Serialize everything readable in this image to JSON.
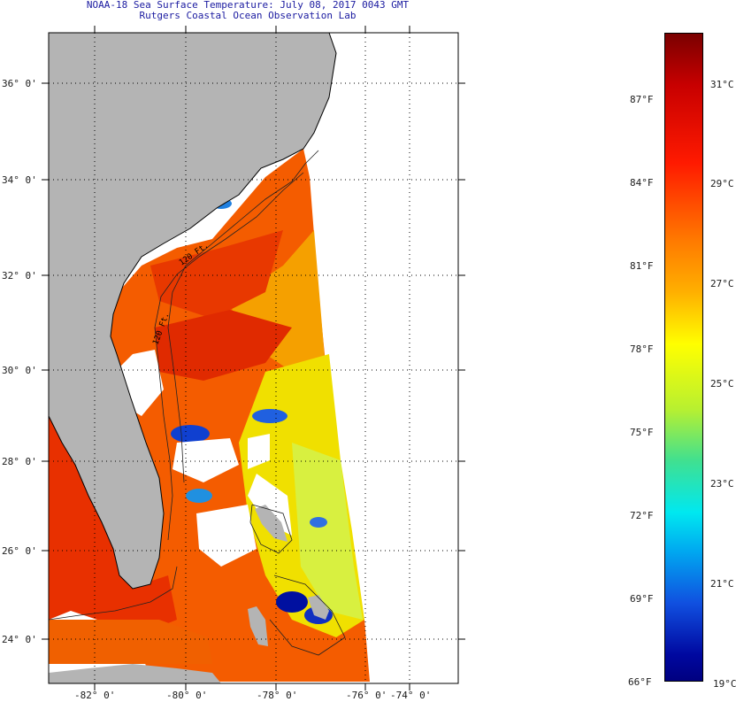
{
  "header": {
    "title_line1": "NOAA-18 Sea Surface Temperature:  July 08, 2017 0043 GMT",
    "title_line2": "Rutgers Coastal Ocean Observation Lab"
  },
  "map": {
    "lat_labels": [
      "36° 0'",
      "34° 0'",
      "32° 0'",
      "30° 0'",
      "28° 0'",
      "26° 0'",
      "24° 0'"
    ],
    "lon_labels": [
      "-82° 0'",
      "-80° 0'",
      "-78° 0'",
      "-76° 0'",
      "-74° 0'"
    ],
    "contour_labels": [
      "120 Ft.",
      "120 Ft."
    ],
    "colors": {
      "land": "#b4b4b4",
      "no_data": "#ffffff",
      "coast": "#000000"
    }
  },
  "colorbar": {
    "fahrenheit_labels": [
      "87°F",
      "84°F",
      "81°F",
      "78°F",
      "75°F",
      "72°F",
      "69°F",
      "66°F"
    ],
    "celsius_labels": [
      "31°C",
      "29°C",
      "27°C",
      "25°C",
      "23°C",
      "21°C",
      "19°C"
    ],
    "range_f": [
      66,
      90
    ],
    "range_c": [
      19,
      32
    ]
  }
}
